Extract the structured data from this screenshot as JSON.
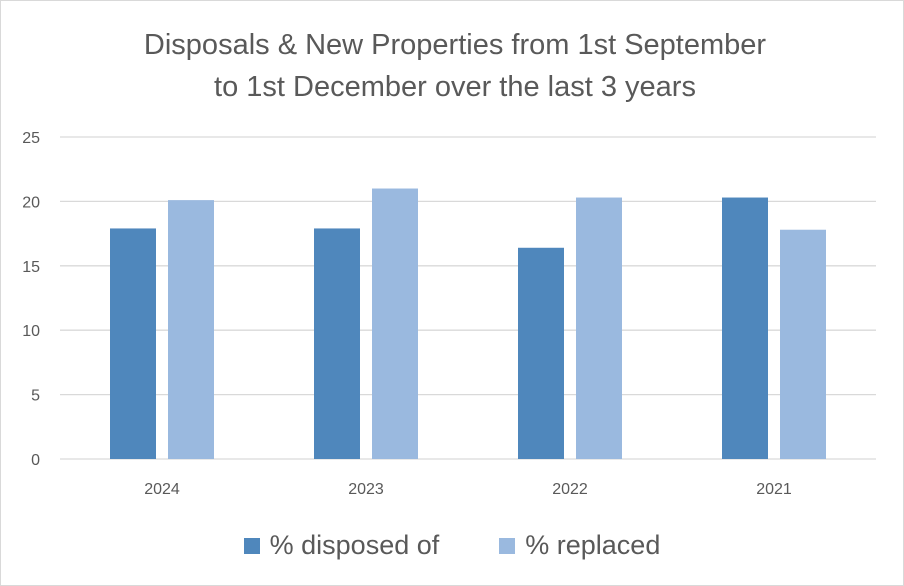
{
  "chart_data": {
    "type": "bar",
    "title_lines": [
      "Disposals & New Properties from 1st September",
      "to 1st December over the last 3 years"
    ],
    "categories": [
      "2024",
      "2023",
      "2022",
      "2021"
    ],
    "series": [
      {
        "name": "% disposed of",
        "values": [
          17.9,
          17.9,
          16.4,
          20.3
        ],
        "color": "#4f87bc"
      },
      {
        "name": "% replaced",
        "values": [
          20.1,
          21.0,
          20.3,
          17.8
        ],
        "color": "#9ab9df"
      }
    ],
    "ylim": [
      0,
      25
    ],
    "yticks": [
      0,
      5,
      10,
      15,
      20,
      25
    ],
    "grid": true,
    "legend_position": "bottom"
  }
}
